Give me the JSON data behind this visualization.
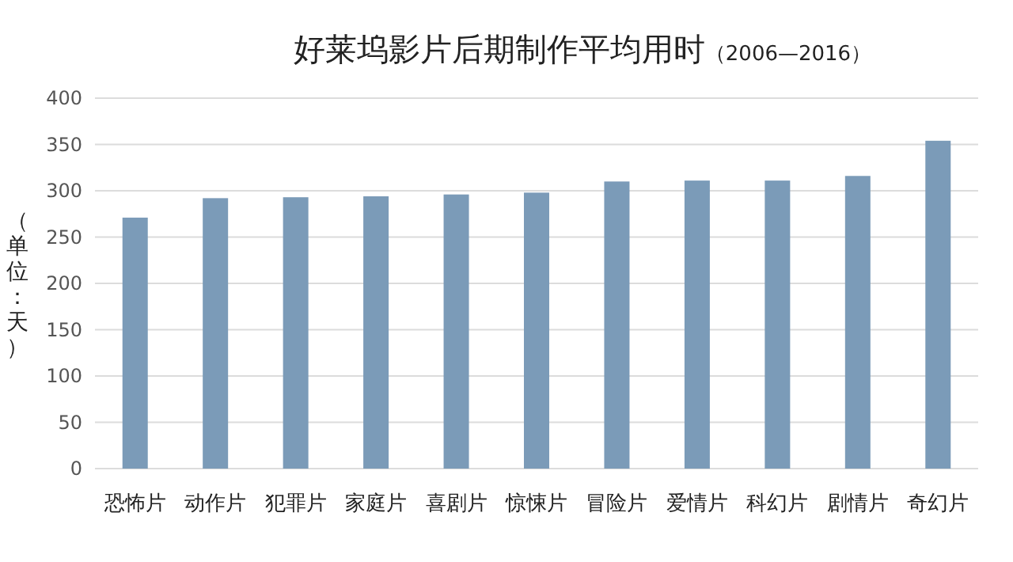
{
  "chart_data": {
    "type": "bar",
    "title": "好莱坞影片后期制作平均用时",
    "subtitle": "（2006—2016）",
    "ylabel": "（单位：天）",
    "categories": [
      "恐怖片",
      "动作片",
      "犯罪片",
      "家庭片",
      "喜剧片",
      "惊悚片",
      "冒险片",
      "爱情片",
      "科幻片",
      "剧情片",
      "奇幻片"
    ],
    "values": [
      271,
      292,
      293,
      294,
      296,
      298,
      310,
      311,
      311,
      316,
      354
    ],
    "color": "#7b9bb8",
    "ylim": [
      0,
      400
    ],
    "yticks": [
      0,
      50,
      100,
      150,
      200,
      250,
      300,
      350,
      400
    ],
    "grid": "y"
  }
}
